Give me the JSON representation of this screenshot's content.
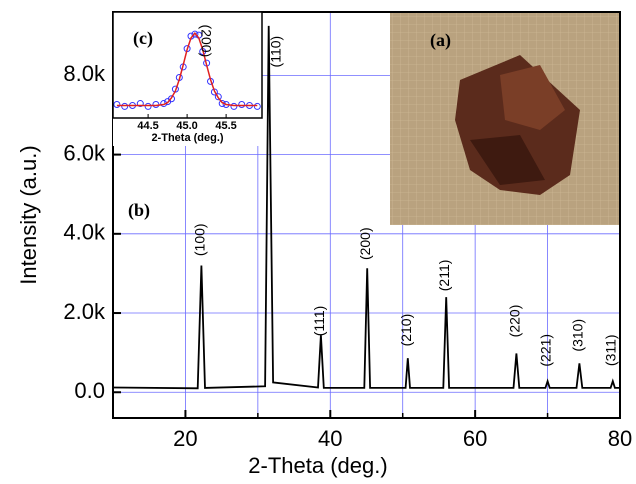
{
  "chart_data": [
    {
      "type": "line",
      "xlabel": "2-Theta (deg.)",
      "ylabel": "Intensity (a.u.)",
      "label": "(b)",
      "xlim": [
        10,
        80
      ],
      "xticks": [
        20,
        40,
        60,
        80
      ],
      "xticks_minor": [
        30,
        50,
        70
      ],
      "ylim": [
        -650,
        9600
      ],
      "yticks": [
        {
          "value": 0,
          "label": "0.0"
        },
        {
          "value": 2000,
          "label": "2.0k"
        },
        {
          "value": 4000,
          "label": "4.0k"
        },
        {
          "value": 6000,
          "label": "6.0k"
        },
        {
          "value": 8000,
          "label": "8.0k"
        }
      ],
      "grid": true,
      "grid_color": "#6b6bff",
      "series": [
        {
          "color": "#000000",
          "x": [
            10,
            21.7,
            22.2,
            22.7,
            31.0,
            31.5,
            32.1,
            38.3,
            38.7,
            39.1,
            44.7,
            45.1,
            45.5,
            50.4,
            50.7,
            51.0,
            55.6,
            56.0,
            56.4,
            65.3,
            65.7,
            66.1,
            69.7,
            70.0,
            70.3,
            74.0,
            74.4,
            74.8,
            78.7,
            79.0,
            79.3,
            80
          ],
          "values": [
            120,
            100,
            3200,
            110,
            150,
            9250,
            250,
            120,
            1440,
            110,
            110,
            3130,
            110,
            110,
            860,
            110,
            110,
            2400,
            110,
            110,
            980,
            110,
            110,
            280,
            110,
            110,
            730,
            110,
            110,
            280,
            110,
            110
          ]
        }
      ],
      "annotations": [
        {
          "text": "(100)",
          "x": 22.1,
          "y": 3850
        },
        {
          "text": "(110)",
          "x": 32.6,
          "y": 8600
        },
        {
          "text": "(111)",
          "x": 38.6,
          "y": 1800
        },
        {
          "text": "(200)",
          "x": 45.0,
          "y": 3750
        },
        {
          "text": "(210)",
          "x": 50.6,
          "y": 1570
        },
        {
          "text": "(211)",
          "x": 55.9,
          "y": 2950
        },
        {
          "text": "(220)",
          "x": 65.6,
          "y": 1800
        },
        {
          "text": "(221)",
          "x": 69.9,
          "y": 1060
        },
        {
          "text": "(310)",
          "x": 74.3,
          "y": 1440
        },
        {
          "text": "(311)",
          "x": 78.9,
          "y": 1060
        }
      ]
    },
    {
      "type": "scatter",
      "label": "(c)",
      "xlabel": "2-Theta (deg.)",
      "xlim": [
        44.05,
        45.96
      ],
      "xticks": [
        44.5,
        {
          "value": 45,
          "label": "45.0"
        },
        45.5
      ],
      "ylim": [
        0,
        1.1
      ],
      "x": [
        44.1,
        44.2,
        44.3,
        44.4,
        44.5,
        44.6,
        44.7,
        44.75,
        44.8,
        44.85,
        44.9,
        44.95,
        45.0,
        45.05,
        45.1,
        45.15,
        45.2,
        45.25,
        45.3,
        45.35,
        45.4,
        45.45,
        45.5,
        45.6,
        45.7,
        45.8,
        45.9
      ],
      "series": [
        {
          "kind": "points",
          "color": "#3333ff",
          "values": [
            0.14,
            0.12,
            0.13,
            0.15,
            0.12,
            0.14,
            0.15,
            0.17,
            0.2,
            0.3,
            0.42,
            0.53,
            0.72,
            0.85,
            0.87,
            0.86,
            0.69,
            0.57,
            0.38,
            0.27,
            0.22,
            0.15,
            0.14,
            0.12,
            0.14,
            0.13,
            0.12
          ]
        },
        {
          "kind": "fit",
          "color": "#e02020",
          "values": [
            0.13,
            0.13,
            0.13,
            0.13,
            0.13,
            0.13,
            0.14,
            0.16,
            0.21,
            0.28,
            0.4,
            0.55,
            0.71,
            0.83,
            0.88,
            0.83,
            0.71,
            0.55,
            0.4,
            0.28,
            0.21,
            0.16,
            0.14,
            0.13,
            0.13,
            0.13,
            0.13
          ]
        }
      ],
      "annotations": [
        {
          "text": "(200)",
          "x": 45.23,
          "y": 0.8
        }
      ]
    },
    {
      "type": "photo",
      "label": "(a)"
    }
  ]
}
